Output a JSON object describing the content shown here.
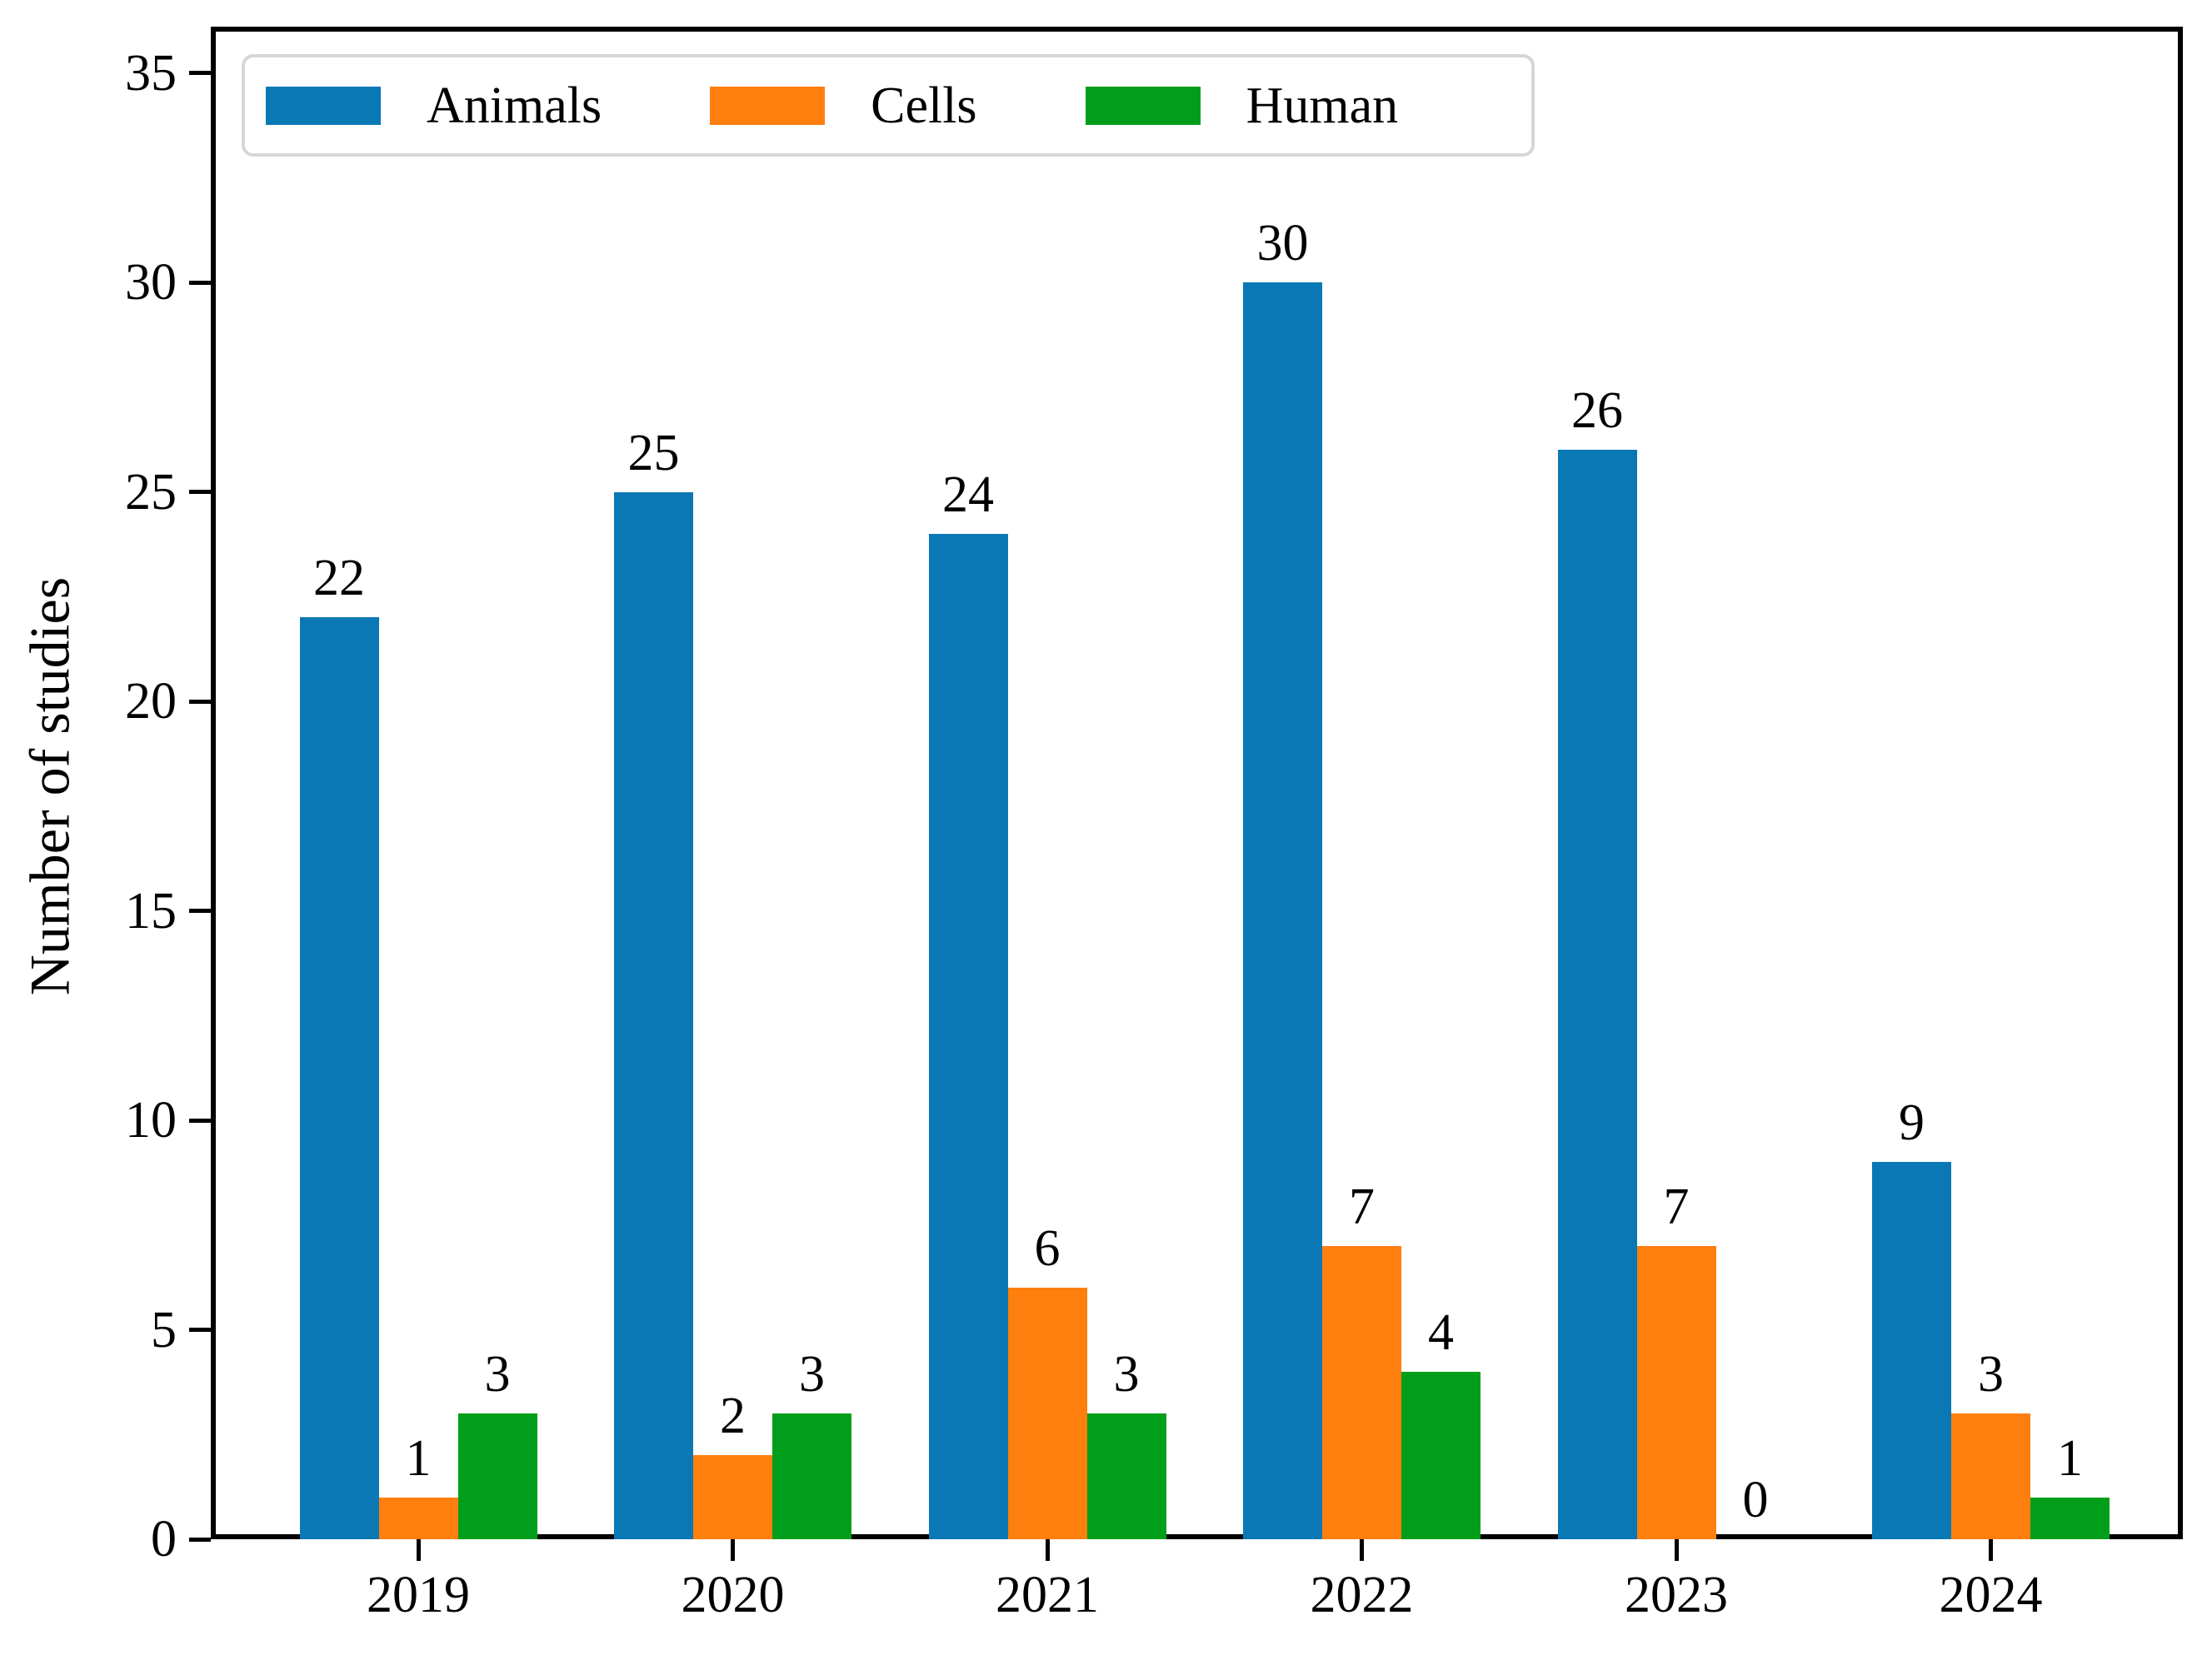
{
  "chart_data": {
    "type": "bar",
    "title": "",
    "xlabel": "",
    "ylabel": "Number of studies",
    "categories": [
      "2019",
      "2020",
      "2021",
      "2022",
      "2023",
      "2024"
    ],
    "series": [
      {
        "name": "Animals",
        "color": "#0a78b5",
        "values": [
          22,
          25,
          24,
          30,
          26,
          9
        ]
      },
      {
        "name": "Cells",
        "color": "#ff7f0e",
        "values": [
          1,
          2,
          6,
          7,
          7,
          3
        ]
      },
      {
        "name": "Human",
        "color": "#009e1a",
        "values": [
          3,
          3,
          3,
          4,
          0,
          1
        ]
      }
    ],
    "yticks": [
      0,
      5,
      10,
      15,
      20,
      25,
      30,
      35
    ],
    "ylim": [
      0,
      36
    ],
    "grid": false,
    "legend_position": "upper left",
    "bar_value_labels": true
  },
  "colors": {
    "axis": "#000000",
    "background": "#ffffff",
    "legend_border": "#d6d6d6"
  }
}
